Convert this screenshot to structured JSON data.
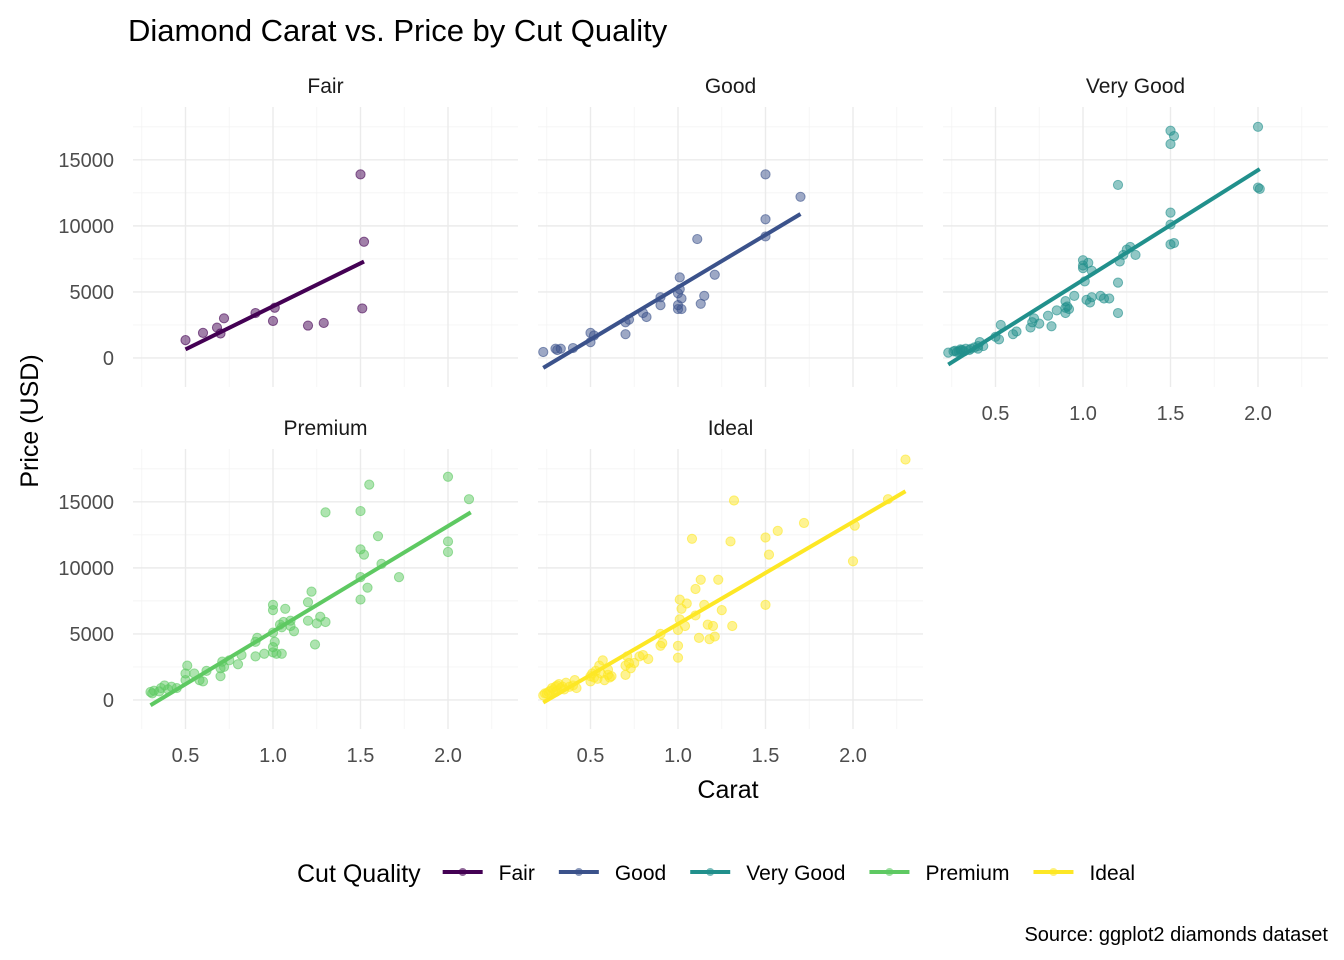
{
  "chart_data": {
    "type": "scatter",
    "title": "Diamond Carat vs. Price by Cut Quality",
    "xlabel": "Carat",
    "ylabel": "Price (USD)",
    "caption": "Source: ggplot2 diamonds dataset",
    "legend_title": "Cut Quality",
    "legend_position": "bottom",
    "grid": true,
    "xlim": [
      0.2,
      2.4
    ],
    "ylim": [
      -2200,
      19000
    ],
    "x_ticks": [
      0.5,
      1.0,
      1.5,
      2.0
    ],
    "x_tick_labels": [
      "0.5",
      "1.0",
      "1.5",
      "2.0"
    ],
    "y_ticks": [
      0,
      5000,
      10000,
      15000
    ],
    "y_tick_labels": [
      "0",
      "5000",
      "10000",
      "15000"
    ],
    "series": [
      {
        "name": "Fair",
        "color": "#440154",
        "fit": {
          "x": [
            0.5,
            1.52
          ],
          "y": [
            650,
            7300
          ]
        },
        "points": [
          [
            0.5,
            1350
          ],
          [
            0.6,
            1900
          ],
          [
            0.68,
            2300
          ],
          [
            0.7,
            1850
          ],
          [
            0.72,
            3000
          ],
          [
            0.9,
            3400
          ],
          [
            1.0,
            2800
          ],
          [
            1.01,
            3800
          ],
          [
            1.2,
            2450
          ],
          [
            1.29,
            2650
          ],
          [
            1.5,
            13900
          ],
          [
            1.51,
            3750
          ],
          [
            1.52,
            8800
          ]
        ]
      },
      {
        "name": "Good",
        "color": "#3b528b",
        "fit": {
          "x": [
            0.23,
            1.7
          ],
          "y": [
            -750,
            10900
          ]
        },
        "points": [
          [
            0.23,
            450
          ],
          [
            0.3,
            700
          ],
          [
            0.31,
            600
          ],
          [
            0.33,
            700
          ],
          [
            0.4,
            750
          ],
          [
            0.5,
            1200
          ],
          [
            0.5,
            1900
          ],
          [
            0.52,
            1700
          ],
          [
            0.7,
            1800
          ],
          [
            0.7,
            2700
          ],
          [
            0.72,
            2900
          ],
          [
            0.8,
            3400
          ],
          [
            0.82,
            3100
          ],
          [
            0.9,
            4000
          ],
          [
            0.9,
            4600
          ],
          [
            1.0,
            3700
          ],
          [
            1.0,
            4000
          ],
          [
            1.0,
            4900
          ],
          [
            1.01,
            5200
          ],
          [
            1.01,
            6100
          ],
          [
            1.02,
            3700
          ],
          [
            1.02,
            4500
          ],
          [
            1.11,
            9000
          ],
          [
            1.13,
            4100
          ],
          [
            1.15,
            4700
          ],
          [
            1.21,
            6300
          ],
          [
            1.5,
            13900
          ],
          [
            1.5,
            10500
          ],
          [
            1.5,
            9200
          ],
          [
            1.7,
            12200
          ]
        ]
      },
      {
        "name": "Very Good",
        "color": "#21908c",
        "fit": {
          "x": [
            0.23,
            2.01
          ],
          "y": [
            -500,
            14300
          ]
        },
        "points": [
          [
            0.23,
            400
          ],
          [
            0.26,
            500
          ],
          [
            0.27,
            550
          ],
          [
            0.28,
            450
          ],
          [
            0.29,
            500
          ],
          [
            0.3,
            550
          ],
          [
            0.3,
            650
          ],
          [
            0.31,
            600
          ],
          [
            0.32,
            500
          ],
          [
            0.33,
            700
          ],
          [
            0.35,
            600
          ],
          [
            0.36,
            700
          ],
          [
            0.38,
            800
          ],
          [
            0.4,
            900
          ],
          [
            0.4,
            700
          ],
          [
            0.41,
            1200
          ],
          [
            0.43,
            900
          ],
          [
            0.5,
            1600
          ],
          [
            0.52,
            1400
          ],
          [
            0.53,
            2500
          ],
          [
            0.6,
            1800
          ],
          [
            0.62,
            2000
          ],
          [
            0.7,
            2300
          ],
          [
            0.71,
            2700
          ],
          [
            0.72,
            3000
          ],
          [
            0.75,
            2600
          ],
          [
            0.8,
            3200
          ],
          [
            0.82,
            2400
          ],
          [
            0.85,
            3600
          ],
          [
            0.9,
            3800
          ],
          [
            0.9,
            4300
          ],
          [
            0.9,
            3400
          ],
          [
            0.91,
            3900
          ],
          [
            0.92,
            3700
          ],
          [
            0.95,
            4700
          ],
          [
            1.0,
            6800
          ],
          [
            1.0,
            7400
          ],
          [
            1.0,
            7000
          ],
          [
            1.01,
            5800
          ],
          [
            1.02,
            4400
          ],
          [
            1.03,
            7200
          ],
          [
            1.04,
            4200
          ],
          [
            1.05,
            6600
          ],
          [
            1.05,
            4600
          ],
          [
            1.1,
            4700
          ],
          [
            1.12,
            4500
          ],
          [
            1.15,
            4500
          ],
          [
            1.2,
            3400
          ],
          [
            1.2,
            5700
          ],
          [
            1.2,
            13100
          ],
          [
            1.21,
            7300
          ],
          [
            1.23,
            7800
          ],
          [
            1.25,
            8200
          ],
          [
            1.27,
            8400
          ],
          [
            1.3,
            7800
          ],
          [
            1.5,
            8600
          ],
          [
            1.5,
            11000
          ],
          [
            1.5,
            10100
          ],
          [
            1.5,
            16200
          ],
          [
            1.5,
            17200
          ],
          [
            1.52,
            16800
          ],
          [
            1.52,
            8700
          ],
          [
            2.0,
            17500
          ],
          [
            2.0,
            12900
          ],
          [
            2.01,
            12800
          ]
        ]
      },
      {
        "name": "Premium",
        "color": "#5ec962",
        "fit": {
          "x": [
            0.3,
            2.13
          ],
          "y": [
            -400,
            14200
          ]
        },
        "points": [
          [
            0.3,
            600
          ],
          [
            0.31,
            500
          ],
          [
            0.32,
            700
          ],
          [
            0.35,
            650
          ],
          [
            0.36,
            900
          ],
          [
            0.38,
            1100
          ],
          [
            0.4,
            800
          ],
          [
            0.42,
            1000
          ],
          [
            0.45,
            900
          ],
          [
            0.5,
            1500
          ],
          [
            0.5,
            2000
          ],
          [
            0.51,
            2600
          ],
          [
            0.55,
            2000
          ],
          [
            0.58,
            1500
          ],
          [
            0.6,
            1400
          ],
          [
            0.62,
            2200
          ],
          [
            0.7,
            2400
          ],
          [
            0.7,
            1800
          ],
          [
            0.71,
            2900
          ],
          [
            0.72,
            2500
          ],
          [
            0.75,
            3000
          ],
          [
            0.8,
            2700
          ],
          [
            0.82,
            3400
          ],
          [
            0.9,
            3300
          ],
          [
            0.9,
            4400
          ],
          [
            0.91,
            4700
          ],
          [
            0.95,
            3500
          ],
          [
            1.0,
            3600
          ],
          [
            1.0,
            4000
          ],
          [
            1.0,
            5100
          ],
          [
            1.0,
            6800
          ],
          [
            1.0,
            7200
          ],
          [
            1.01,
            4400
          ],
          [
            1.02,
            3500
          ],
          [
            1.04,
            5700
          ],
          [
            1.05,
            3500
          ],
          [
            1.05,
            5500
          ],
          [
            1.06,
            5900
          ],
          [
            1.07,
            6900
          ],
          [
            1.1,
            5600
          ],
          [
            1.1,
            6000
          ],
          [
            1.12,
            5200
          ],
          [
            1.2,
            6000
          ],
          [
            1.2,
            7400
          ],
          [
            1.22,
            8200
          ],
          [
            1.24,
            4200
          ],
          [
            1.25,
            5800
          ],
          [
            1.27,
            6300
          ],
          [
            1.3,
            5900
          ],
          [
            1.3,
            14200
          ],
          [
            1.5,
            7600
          ],
          [
            1.5,
            9300
          ],
          [
            1.5,
            11400
          ],
          [
            1.5,
            14300
          ],
          [
            1.52,
            11000
          ],
          [
            1.54,
            8500
          ],
          [
            1.55,
            16300
          ],
          [
            1.6,
            12400
          ],
          [
            1.62,
            10300
          ],
          [
            1.72,
            9300
          ],
          [
            2.0,
            16900
          ],
          [
            2.0,
            12000
          ],
          [
            2.0,
            11200
          ],
          [
            2.12,
            15200
          ]
        ]
      },
      {
        "name": "Ideal",
        "color": "#fde725",
        "fit": {
          "x": [
            0.23,
            2.3
          ],
          "y": [
            -200,
            15800
          ]
        },
        "points": [
          [
            0.23,
            350
          ],
          [
            0.24,
            500
          ],
          [
            0.25,
            500
          ],
          [
            0.26,
            600
          ],
          [
            0.27,
            700
          ],
          [
            0.28,
            900
          ],
          [
            0.29,
            800
          ],
          [
            0.3,
            600
          ],
          [
            0.3,
            1000
          ],
          [
            0.31,
            700
          ],
          [
            0.31,
            1100
          ],
          [
            0.32,
            1200
          ],
          [
            0.33,
            900
          ],
          [
            0.34,
            1000
          ],
          [
            0.35,
            800
          ],
          [
            0.36,
            1300
          ],
          [
            0.38,
            1000
          ],
          [
            0.4,
            1100
          ],
          [
            0.41,
            1500
          ],
          [
            0.42,
            900
          ],
          [
            0.5,
            1400
          ],
          [
            0.5,
            1800
          ],
          [
            0.51,
            2000
          ],
          [
            0.52,
            1700
          ],
          [
            0.53,
            2200
          ],
          [
            0.54,
            1600
          ],
          [
            0.55,
            2600
          ],
          [
            0.56,
            2000
          ],
          [
            0.57,
            3000
          ],
          [
            0.58,
            1500
          ],
          [
            0.6,
            1900
          ],
          [
            0.6,
            2300
          ],
          [
            0.61,
            1700
          ],
          [
            0.62,
            1800
          ],
          [
            0.7,
            2600
          ],
          [
            0.7,
            1900
          ],
          [
            0.71,
            3300
          ],
          [
            0.72,
            2800
          ],
          [
            0.73,
            2400
          ],
          [
            0.75,
            2800
          ],
          [
            0.78,
            3300
          ],
          [
            0.8,
            3400
          ],
          [
            0.83,
            3100
          ],
          [
            0.9,
            4100
          ],
          [
            0.9,
            5000
          ],
          [
            0.91,
            4300
          ],
          [
            1.0,
            5300
          ],
          [
            1.0,
            4100
          ],
          [
            1.0,
            3200
          ],
          [
            1.01,
            6100
          ],
          [
            1.01,
            7600
          ],
          [
            1.02,
            6900
          ],
          [
            1.04,
            5600
          ],
          [
            1.05,
            7300
          ],
          [
            1.08,
            12200
          ],
          [
            1.1,
            6400
          ],
          [
            1.1,
            8400
          ],
          [
            1.12,
            4700
          ],
          [
            1.13,
            9100
          ],
          [
            1.15,
            7200
          ],
          [
            1.17,
            5700
          ],
          [
            1.18,
            4600
          ],
          [
            1.2,
            5600
          ],
          [
            1.21,
            4800
          ],
          [
            1.23,
            9100
          ],
          [
            1.25,
            6800
          ],
          [
            1.3,
            12000
          ],
          [
            1.31,
            5600
          ],
          [
            1.32,
            15100
          ],
          [
            1.5,
            12300
          ],
          [
            1.5,
            7200
          ],
          [
            1.52,
            11000
          ],
          [
            1.57,
            12800
          ],
          [
            1.72,
            13400
          ],
          [
            2.0,
            10500
          ],
          [
            2.01,
            13200
          ],
          [
            2.2,
            15200
          ],
          [
            2.3,
            18200
          ]
        ]
      }
    ]
  }
}
